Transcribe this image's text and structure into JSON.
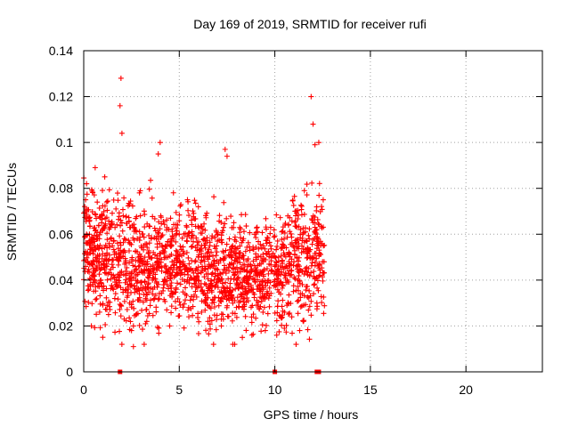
{
  "chart_data": {
    "type": "scatter",
    "title": "Day 169 of 2019, SRMTID for receiver rufi",
    "xlabel": "GPS time / hours",
    "ylabel": "SRMTID / TECUs",
    "xlim": [
      0,
      24
    ],
    "ylim": [
      0,
      0.14
    ],
    "xticks": [
      0,
      5,
      10,
      15,
      20
    ],
    "xtick_labels": [
      "0",
      "5",
      "10",
      "15",
      "20"
    ],
    "yticks": [
      0,
      0.02,
      0.04,
      0.06,
      0.08,
      0.1,
      0.12,
      0.14
    ],
    "ytick_labels": [
      "0",
      "0.02",
      "0.04",
      "0.06",
      "0.08",
      "0.1",
      "0.12",
      "0.14"
    ],
    "grid": true,
    "marker": "+",
    "color": "#ff0000",
    "x_data_range": [
      0,
      12.6
    ],
    "series": [
      {
        "x": [
          0.1,
          0.2,
          0.3,
          0.5,
          0.7,
          0.9,
          1.0,
          1.2,
          1.5,
          1.7,
          1.9,
          2.0,
          2.2,
          2.4,
          2.6,
          2.8,
          3.0,
          3.2,
          3.4,
          3.6,
          3.8,
          4.0,
          4.2,
          4.4,
          4.6,
          4.8,
          5.0,
          5.2,
          5.4,
          5.6,
          5.8,
          6.0,
          6.2,
          6.4,
          6.6,
          6.8,
          7.0,
          7.2,
          7.4,
          7.6,
          7.8,
          8.0,
          8.2,
          8.4,
          8.6,
          8.8,
          9.0,
          9.2,
          9.4,
          9.6,
          9.8,
          10.0,
          10.2,
          10.4,
          10.6,
          10.8,
          11.0,
          11.2,
          11.4,
          11.6,
          11.8,
          12.0,
          12.2,
          12.4,
          12.5,
          0.15,
          0.6,
          1.1,
          1.9,
          1.95,
          2.0,
          3.9,
          4.0,
          7.4,
          7.5,
          11.9,
          12.0,
          12.1,
          12.3,
          0.4,
          1.3,
          2.5,
          3.3,
          4.5,
          5.5,
          6.5,
          7.2,
          8.3,
          9.5,
          10.5,
          11.5,
          12.2,
          2.6,
          7.9,
          8.8,
          10.1,
          11.3
        ],
        "y": [
          0.075,
          0.052,
          0.06,
          0.045,
          0.058,
          0.04,
          0.062,
          0.047,
          0.055,
          0.038,
          0.05,
          0.065,
          0.042,
          0.03,
          0.02,
          0.035,
          0.048,
          0.044,
          0.052,
          0.04,
          0.058,
          0.046,
          0.038,
          0.05,
          0.055,
          0.042,
          0.06,
          0.048,
          0.052,
          0.045,
          0.04,
          0.05,
          0.044,
          0.038,
          0.055,
          0.048,
          0.042,
          0.035,
          0.05,
          0.044,
          0.03,
          0.038,
          0.045,
          0.032,
          0.04,
          0.036,
          0.042,
          0.038,
          0.048,
          0.035,
          0.044,
          0.04,
          0.05,
          0.038,
          0.046,
          0.042,
          0.048,
          0.04,
          0.052,
          0.045,
          0.058,
          0.05,
          0.062,
          0.055,
          0.048,
          0.082,
          0.089,
          0.085,
          0.116,
          0.128,
          0.104,
          0.095,
          0.1,
          0.097,
          0.094,
          0.12,
          0.108,
          0.099,
          0.1,
          0.02,
          0.025,
          0.018,
          0.022,
          0.02,
          0.024,
          0.022,
          0.02,
          0.015,
          0.018,
          0.019,
          0.022,
          0.03,
          0.011,
          0.012,
          0.016,
          0.016,
          0.018
        ]
      }
    ],
    "zero_points": {
      "x": [
        1.9,
        10.0,
        12.2,
        12.3
      ],
      "y": [
        0,
        0,
        0,
        0
      ]
    },
    "density": {
      "segments": [
        {
          "x0": 0.0,
          "x1": 1.5,
          "n": 260,
          "center": 0.052,
          "spread": 0.013
        },
        {
          "x0": 1.5,
          "x1": 3.5,
          "n": 300,
          "center": 0.048,
          "spread": 0.014
        },
        {
          "x0": 3.5,
          "x1": 6.0,
          "n": 330,
          "center": 0.048,
          "spread": 0.012
        },
        {
          "x0": 6.0,
          "x1": 8.0,
          "n": 300,
          "center": 0.045,
          "spread": 0.013
        },
        {
          "x0": 8.0,
          "x1": 10.5,
          "n": 340,
          "center": 0.042,
          "spread": 0.011
        },
        {
          "x0": 10.5,
          "x1": 12.6,
          "n": 280,
          "center": 0.048,
          "spread": 0.013
        }
      ]
    }
  }
}
